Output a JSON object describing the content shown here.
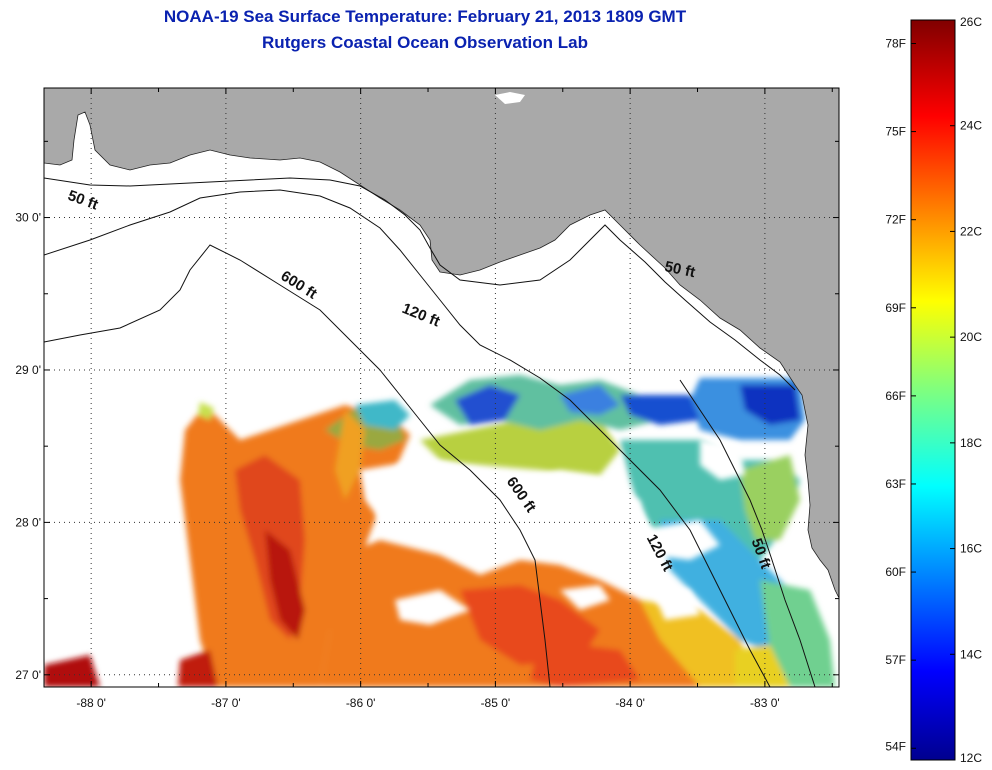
{
  "title": {
    "line1": "NOAA-19 Sea Surface Temperature:  February 21, 2013 1809 GMT",
    "line2": "Rutgers Coastal Ocean Observation Lab"
  },
  "map": {
    "lon_range": [
      -88.35,
      -82.45
    ],
    "lat_range": [
      26.92,
      30.85
    ],
    "land_color": "#a9a9a9",
    "no_data_color": "#ffffff",
    "grid": "dotted",
    "lon_ticks": [
      {
        "value": -88,
        "label": "-88 0'"
      },
      {
        "value": -87,
        "label": "-87 0'"
      },
      {
        "value": -86,
        "label": "-86 0'"
      },
      {
        "value": -85,
        "label": "-85 0'"
      },
      {
        "value": -84,
        "label": "-84 0'"
      },
      {
        "value": -83,
        "label": "-83 0'"
      }
    ],
    "lat_ticks": [
      {
        "value": 30,
        "label": "30 0'"
      },
      {
        "value": 29,
        "label": "29 0'"
      },
      {
        "value": 28,
        "label": "28 0'"
      },
      {
        "value": 27,
        "label": "27 0'"
      }
    ],
    "contour_labels": [
      {
        "text": "50 ft",
        "lon": -88.18,
        "lat": 30.12
      },
      {
        "text": "600 ft",
        "lon": -86.6,
        "lat": 29.6
      },
      {
        "text": "120 ft",
        "lon": -85.7,
        "lat": 29.38
      },
      {
        "text": "50 ft",
        "lon": -83.75,
        "lat": 29.65
      },
      {
        "text": "600 ft",
        "lon": -84.92,
        "lat": 28.27
      },
      {
        "text": "120 ft",
        "lon": -83.88,
        "lat": 27.9
      },
      {
        "text": "50 ft",
        "lon": -83.1,
        "lat": 27.88
      }
    ]
  },
  "colorbar": {
    "min_c": 12,
    "max_c": 26,
    "celsius_labels": [
      "26C",
      "24C",
      "22C",
      "20C",
      "18C",
      "16C",
      "14C",
      "12C"
    ],
    "fahrenheit_labels": [
      "78F",
      "75F",
      "72F",
      "69F",
      "66F",
      "63F",
      "60F",
      "57F",
      "54F"
    ],
    "colormap": "jet"
  }
}
